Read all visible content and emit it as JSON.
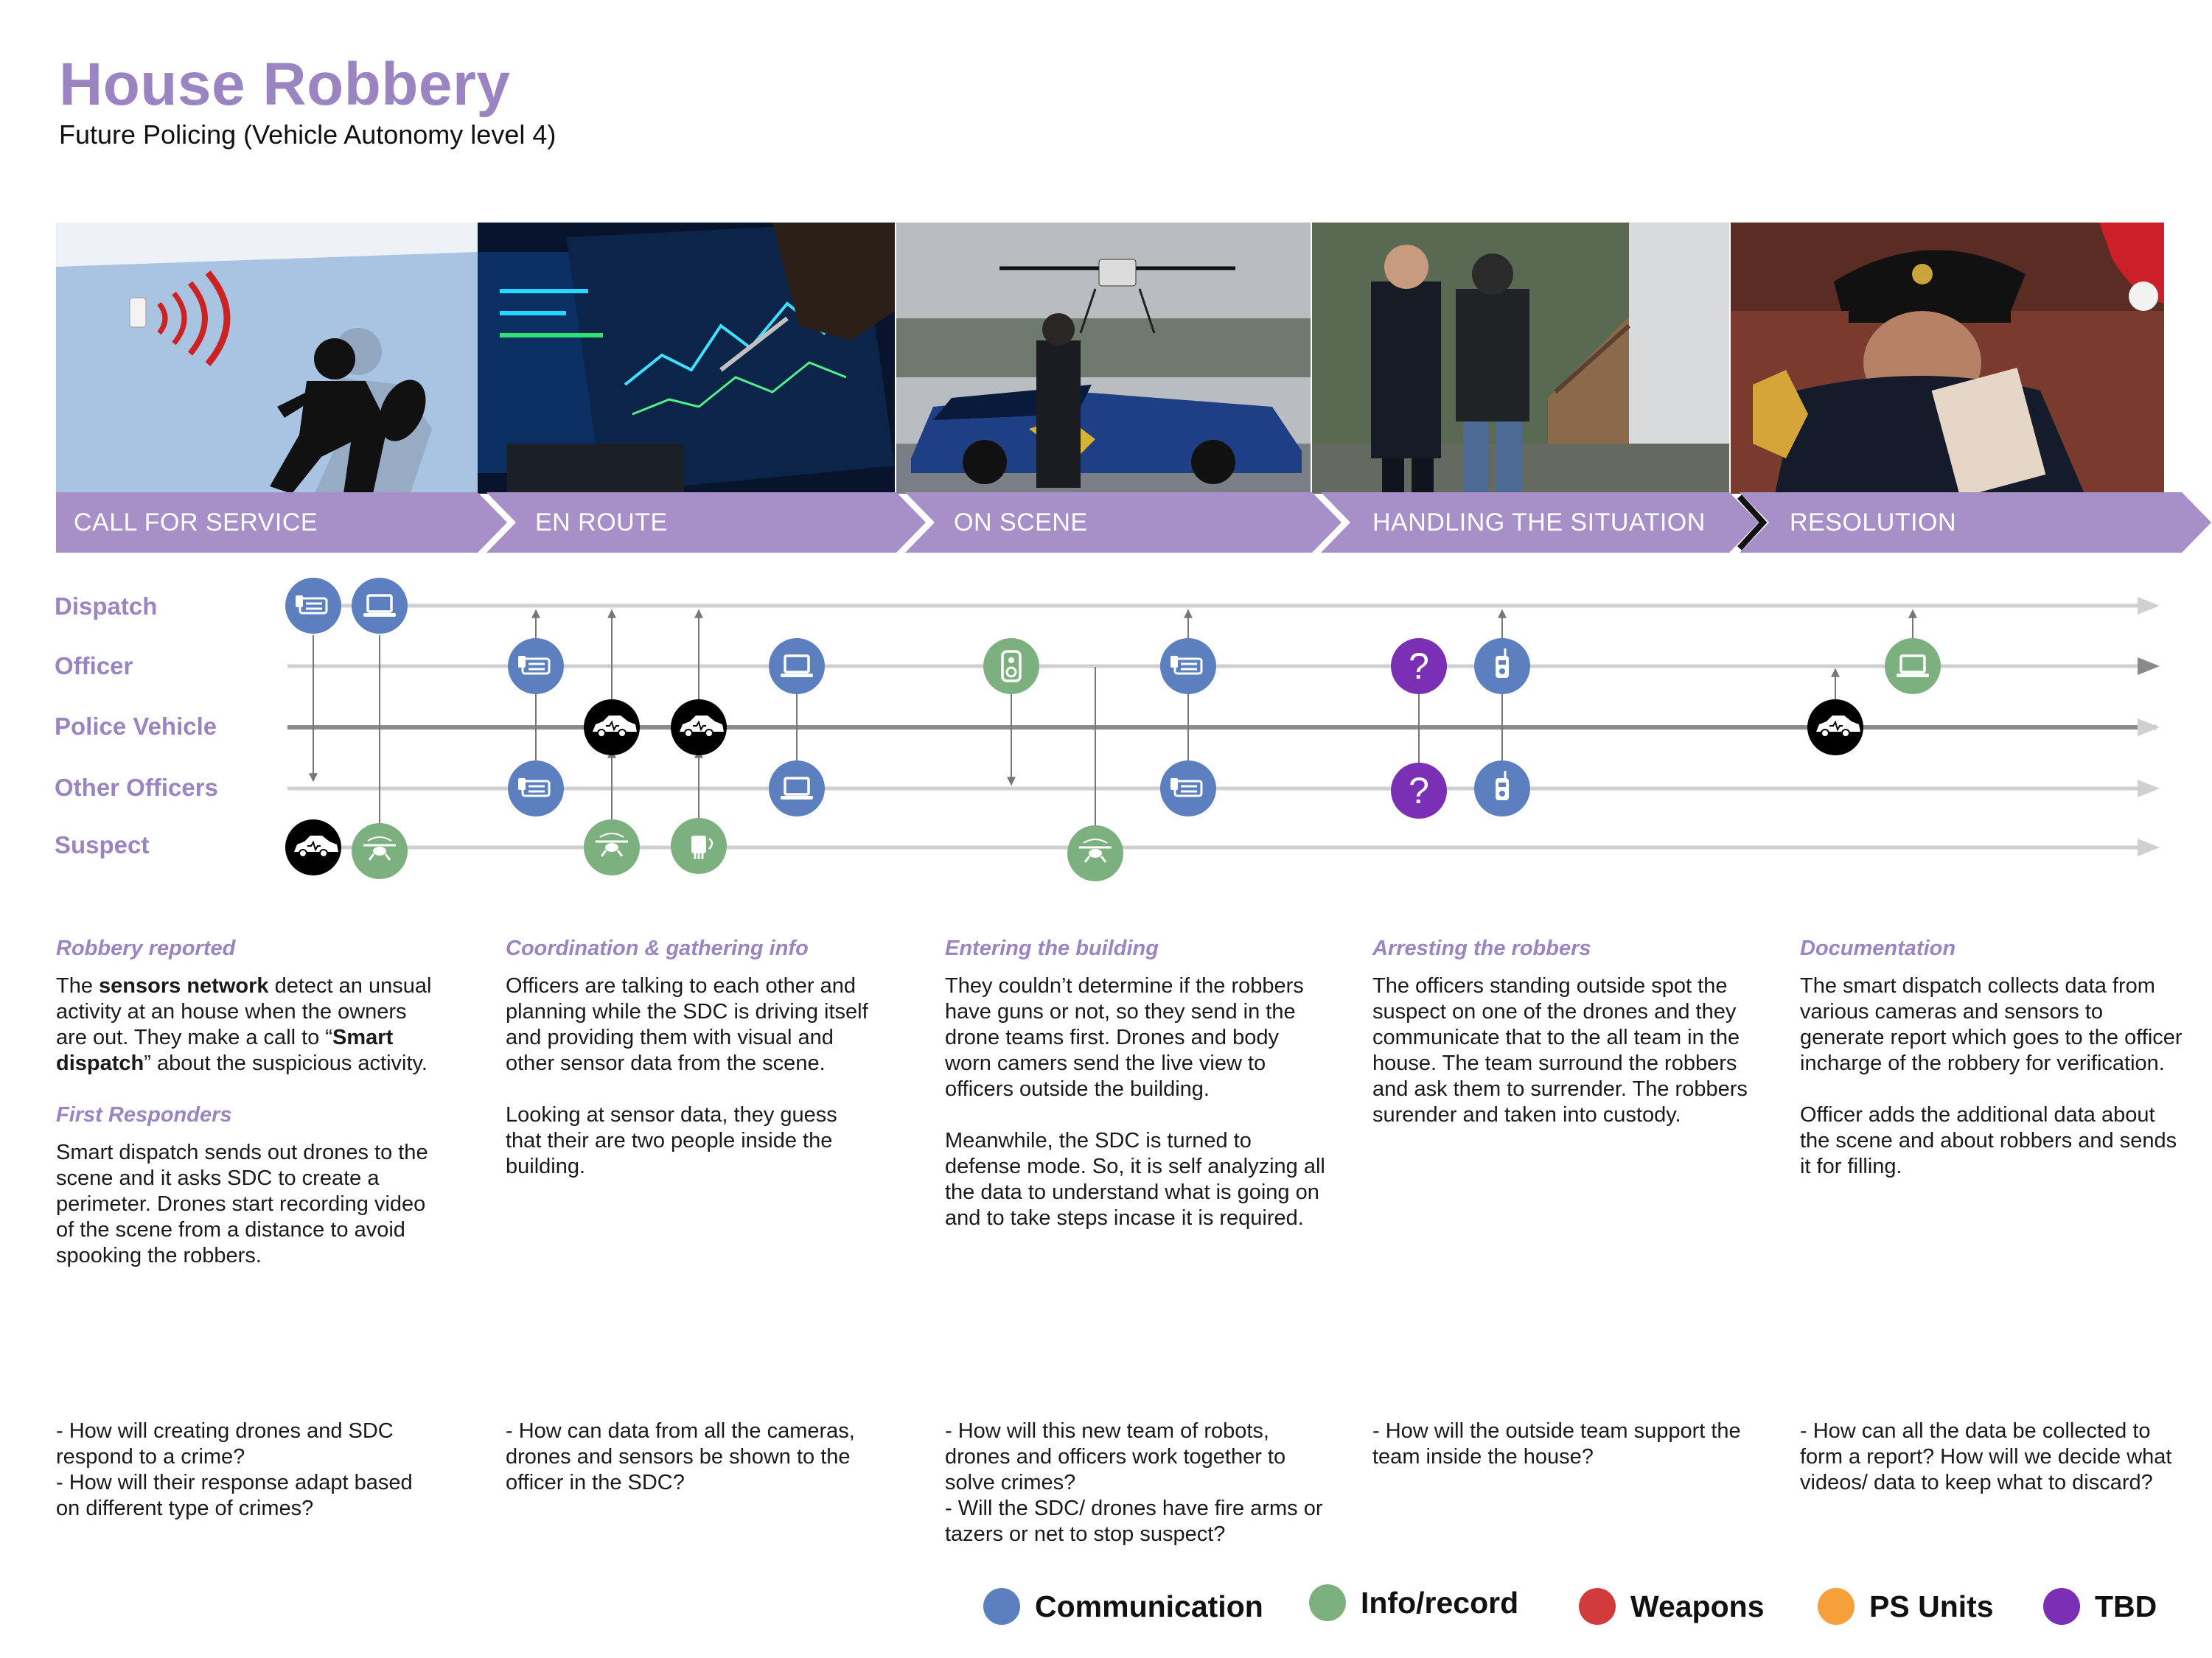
{
  "title": "House Robbery",
  "subtitle": "Future Policing (Vehicle Autonomy level 4)",
  "stages": [
    {
      "label": "CALL FOR SERVICE"
    },
    {
      "label": "EN ROUTE"
    },
    {
      "label": "ON SCENE"
    },
    {
      "label": "HANDLING THE SITUATION"
    },
    {
      "label": "RESOLUTION"
    }
  ],
  "lanes": [
    "Dispatch",
    "Officer",
    "Police Vehicle",
    "Other Officers",
    "Suspect"
  ],
  "columns": [
    {
      "heading1": "Robbery reported",
      "para1_pre": "The ",
      "para1_b1": "sensors network",
      "para1_mid": " detect an unsual activity at an house when the owners are out. They make a call to “",
      "para1_b2": "Smart dispatch",
      "para1_post": "” about the suspicious activity.",
      "heading2": "First Responders",
      "para2": "Smart dispatch sends out drones to the scene and it asks SDC to create a perimeter. Drones start recording video of the scene from a distance to avoid spooking the robbers.",
      "questions": [
        "- How will creating drones and SDC respond to a crime?",
        "- How will their response adapt based on different type of crimes?"
      ]
    },
    {
      "heading1": "Coordination & gathering info",
      "para1": "Officers are talking to each other and planning while the SDC is driving itself and providing them with visual and other sensor data from the scene.",
      "para2": "Looking at sensor data, they guess that their are two people inside the building.",
      "questions": [
        "- How can data from all the cameras, drones and sensors be shown to the officer in the SDC?"
      ]
    },
    {
      "heading1": "Entering the building",
      "para1": "They couldn’t determine if the robbers have guns or not, so they send in the drone teams first. Drones and body worn camers send the live view to officers outside the building.",
      "para2": "Meanwhile, the SDC is turned to defense mode. So, it is self analyzing all the data to understand what is going on and to take steps incase it is required.",
      "questions": [
        "- How will this new team of robots, drones and officers work together to solve crimes?",
        "- Will the SDC/ drones have fire arms or tazers or net to stop suspect?"
      ]
    },
    {
      "heading1": "Arresting the robbers",
      "para1": "The officers standing outside spot the suspect on one of the drones and they communicate that to the all team in the house. The team surround the robbers and ask them to surrender. The robbers surender and taken into custody.",
      "questions": [
        "- How will the outside team support the team inside the house?"
      ]
    },
    {
      "heading1": "Documentation",
      "para1": "The smart dispatch collects data from various cameras and sensors to generate report which goes to the officer incharge of the robbery for verification.",
      "para2": "Officer adds the additional data about the scene and about robbers and sends it for filling.",
      "questions": [
        "- How can all the data be collected to form a report? How will we decide what videos/ data to keep what to discard?"
      ]
    }
  ],
  "legend": [
    {
      "label": "Communication",
      "color": "#5b7fbf"
    },
    {
      "label": "Info/record",
      "color": "#7db07f"
    },
    {
      "label": "Weapons",
      "color": "#d23b3b"
    },
    {
      "label": "PS Units",
      "color": "#f5a03a"
    },
    {
      "label": "TBD",
      "color": "#7b2fb5"
    }
  ],
  "colors": {
    "accent": "#9a85c2",
    "banner": "#a690c7",
    "communication": "#5b7fbf",
    "info": "#7db07f",
    "vehicle": "#000000",
    "tbd": "#7b2fb5"
  },
  "tbd_mark": "?",
  "icons": {
    "d_comm1": "dispatch-console-icon",
    "d_comm2": "laptop-icon",
    "o_comm1": "dispatch-console-icon",
    "o_comm2": "laptop-icon",
    "o_info1": "body-camera-icon",
    "o_comm3": "dispatch-console-icon",
    "o_tbd": "question-icon",
    "o_comm4": "radio-icon",
    "o_info2": "laptop-icon",
    "v1": "police-car-icon",
    "v2": "police-car-icon",
    "v3": "police-car-icon",
    "oo_comm1": "dispatch-console-icon",
    "oo_comm2": "laptop-icon",
    "oo_comm3": "dispatch-console-icon",
    "oo_tbd": "question-icon",
    "oo_comm4": "radio-icon",
    "s_car": "police-car-icon",
    "s_drone1": "drone-icon",
    "s_drone2": "drone-icon",
    "s_sensor": "sensor-icon",
    "s_drone3": "drone-icon"
  }
}
